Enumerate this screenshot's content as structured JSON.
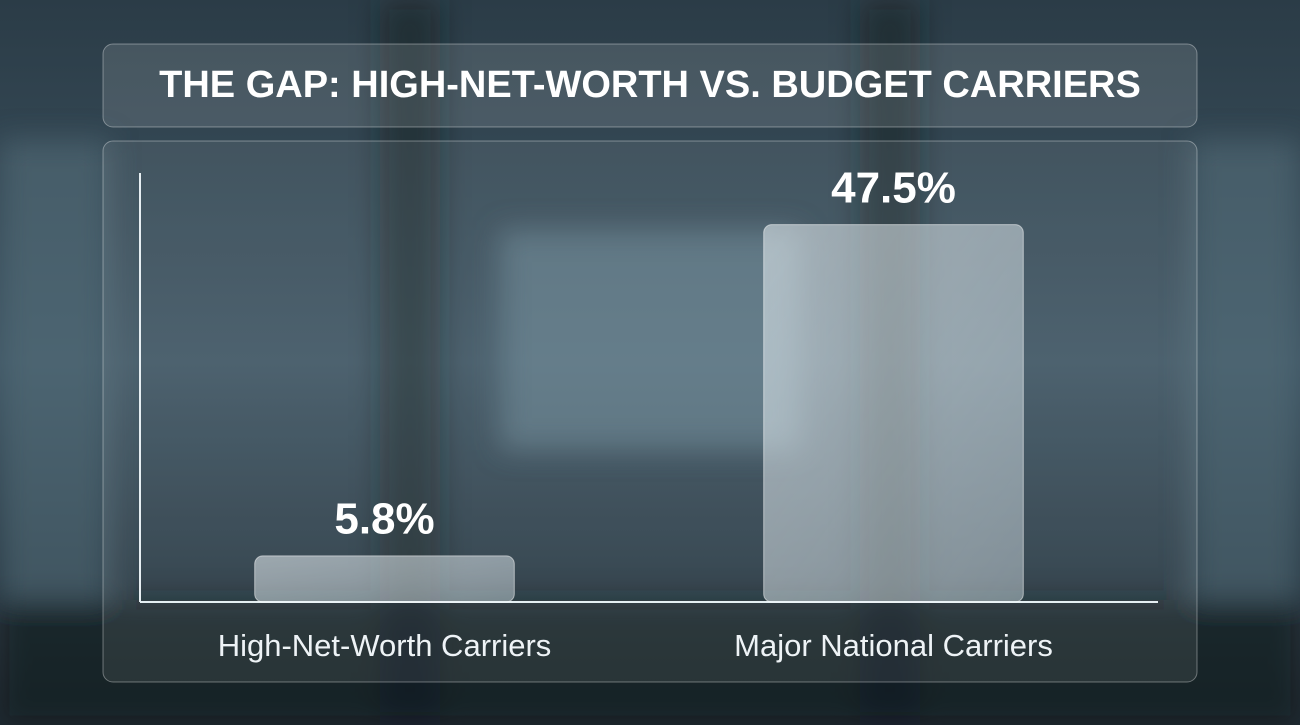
{
  "chart_data": {
    "type": "bar",
    "title": "THE GAP: HIGH-NET-WORTH VS. BUDGET CARRIERS",
    "categories": [
      "High-Net-Worth Carriers",
      "Major National Carriers"
    ],
    "values": [
      5.8,
      47.5
    ],
    "value_labels": [
      "5.8%",
      "47.5%"
    ],
    "color": "#cfe0e8",
    "ylim": [
      0,
      54
    ]
  }
}
